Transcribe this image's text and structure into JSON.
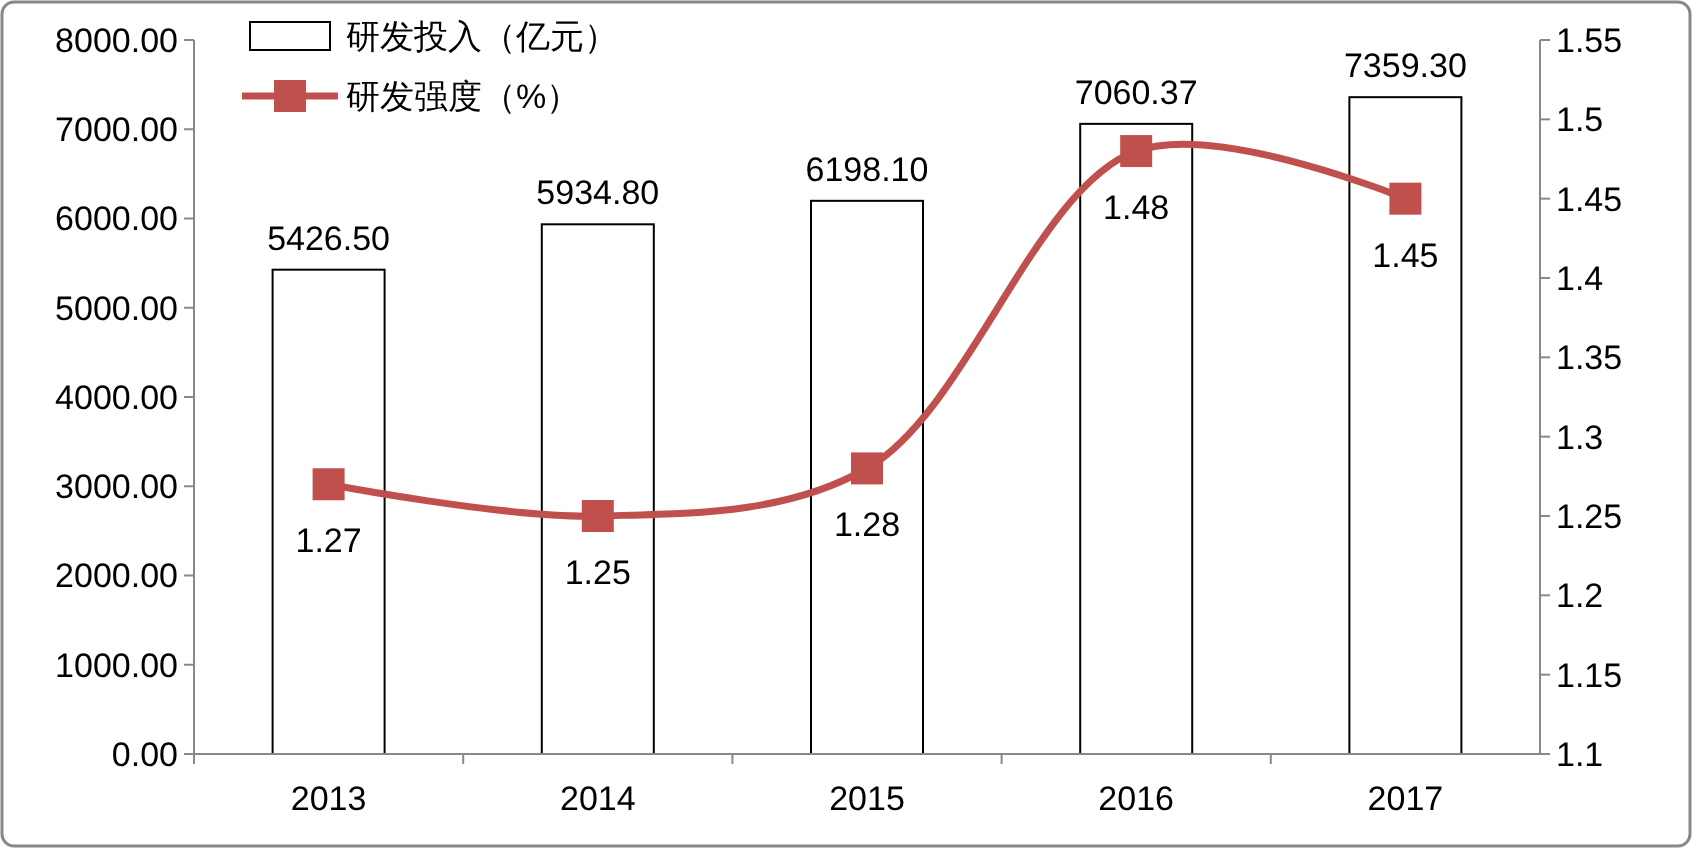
{
  "chart_data": {
    "type": "bar",
    "categories": [
      "2013",
      "2014",
      "2015",
      "2016",
      "2017"
    ],
    "series": [
      {
        "name": "研发投入（亿元）",
        "color": "#ffffff",
        "values": [
          5426.5,
          5934.8,
          6198.1,
          7060.37,
          7359.3
        ],
        "value_labels": [
          "5426.50",
          "5934.80",
          "6198.10",
          "7060.37",
          "7359.30"
        ]
      },
      {
        "name": "研发强度（%）",
        "type": "line",
        "axis": "y2",
        "color": "#c0504d",
        "marker": "square",
        "values": [
          1.27,
          1.25,
          1.28,
          1.48,
          1.45
        ],
        "value_labels": [
          "1.27",
          "1.25",
          "1.28",
          "1.48",
          "1.45"
        ]
      }
    ],
    "ylim": [
      0,
      8000
    ],
    "yticks": [
      {
        "value": 0,
        "label": "0.00"
      },
      {
        "value": 1000,
        "label": "1000.00"
      },
      {
        "value": 2000,
        "label": "2000.00"
      },
      {
        "value": 3000,
        "label": "3000.00"
      },
      {
        "value": 4000,
        "label": "4000.00"
      },
      {
        "value": 5000,
        "label": "5000.00"
      },
      {
        "value": 6000,
        "label": "6000.00"
      },
      {
        "value": 7000,
        "label": "7000.00"
      },
      {
        "value": 8000,
        "label": "8000.00"
      }
    ],
    "y2lim": [
      1.1,
      1.55
    ],
    "y2ticks": [
      1.1,
      1.15,
      1.2,
      1.25,
      1.3,
      1.35,
      1.4,
      1.45,
      1.5,
      1.55
    ],
    "legend": "top left",
    "grid": false
  }
}
